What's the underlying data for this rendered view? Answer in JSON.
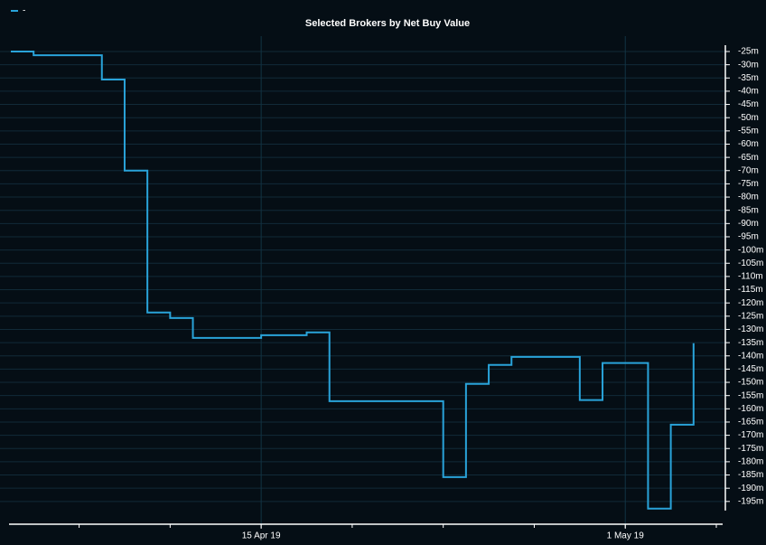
{
  "chart_data": {
    "type": "line",
    "title": "Selected Brokers by Net Buy Value",
    "x": [
      "2019-04-04",
      "2019-04-05",
      "2019-04-08",
      "2019-04-09",
      "2019-04-10",
      "2019-04-11",
      "2019-04-12",
      "2019-04-15",
      "2019-04-17",
      "2019-04-18",
      "2019-04-23",
      "2019-04-24",
      "2019-04-25",
      "2019-04-26",
      "2019-04-29",
      "2019-04-30",
      "2019-05-02",
      "2019-05-03",
      "2019-05-04"
    ],
    "series": [
      {
        "name": "-",
        "color": "#29a3d9",
        "values": [
          -25,
          -26.4,
          -35.6,
          -70,
          -123.6,
          -125.7,
          -133.2,
          -132.2,
          -131.1,
          -157.1,
          -185.8,
          -150.6,
          -143.4,
          -140.4,
          -156.7,
          -142.7,
          -197.7,
          -166,
          -135.2
        ]
      }
    ],
    "xlim": [
      "2019-04-04",
      "2019-05-05"
    ],
    "xticks": [
      {
        "value": "2019-04-15",
        "label": "15 Apr 19"
      },
      {
        "value": "2019-05-01",
        "label": "1 May 19"
      }
    ],
    "ylim": [
      -203.6,
      -19.2
    ],
    "yticks": [
      {
        "value": -25,
        "label": "-25m"
      },
      {
        "value": -30,
        "label": "-30m"
      },
      {
        "value": -35,
        "label": "-35m"
      },
      {
        "value": -40,
        "label": "-40m"
      },
      {
        "value": -45,
        "label": "-45m"
      },
      {
        "value": -50,
        "label": "-50m"
      },
      {
        "value": -55,
        "label": "-55m"
      },
      {
        "value": -60,
        "label": "-60m"
      },
      {
        "value": -65,
        "label": "-65m"
      },
      {
        "value": -70,
        "label": "-70m"
      },
      {
        "value": -75,
        "label": "-75m"
      },
      {
        "value": -80,
        "label": "-80m"
      },
      {
        "value": -85,
        "label": "-85m"
      },
      {
        "value": -90,
        "label": "-90m"
      },
      {
        "value": -95,
        "label": "-95m"
      },
      {
        "value": -100,
        "label": "-100m"
      },
      {
        "value": -105,
        "label": "-105m"
      },
      {
        "value": -110,
        "label": "-110m"
      },
      {
        "value": -115,
        "label": "-115m"
      },
      {
        "value": -120,
        "label": "-120m"
      },
      {
        "value": -125,
        "label": "-125m"
      },
      {
        "value": -130,
        "label": "-130m"
      },
      {
        "value": -135,
        "label": "-135m"
      },
      {
        "value": -140,
        "label": "-140m"
      },
      {
        "value": -145,
        "label": "-145m"
      },
      {
        "value": -150,
        "label": "-150m"
      },
      {
        "value": -155,
        "label": "-155m"
      },
      {
        "value": -160,
        "label": "-160m"
      },
      {
        "value": -165,
        "label": "-165m"
      },
      {
        "value": -170,
        "label": "-170m"
      },
      {
        "value": -175,
        "label": "-175m"
      },
      {
        "value": -180,
        "label": "-180m"
      },
      {
        "value": -185,
        "label": "-185m"
      },
      {
        "value": -190,
        "label": "-190m"
      },
      {
        "value": -195,
        "label": "-195m"
      }
    ],
    "step": true,
    "grid": true,
    "legend": "top-left"
  }
}
